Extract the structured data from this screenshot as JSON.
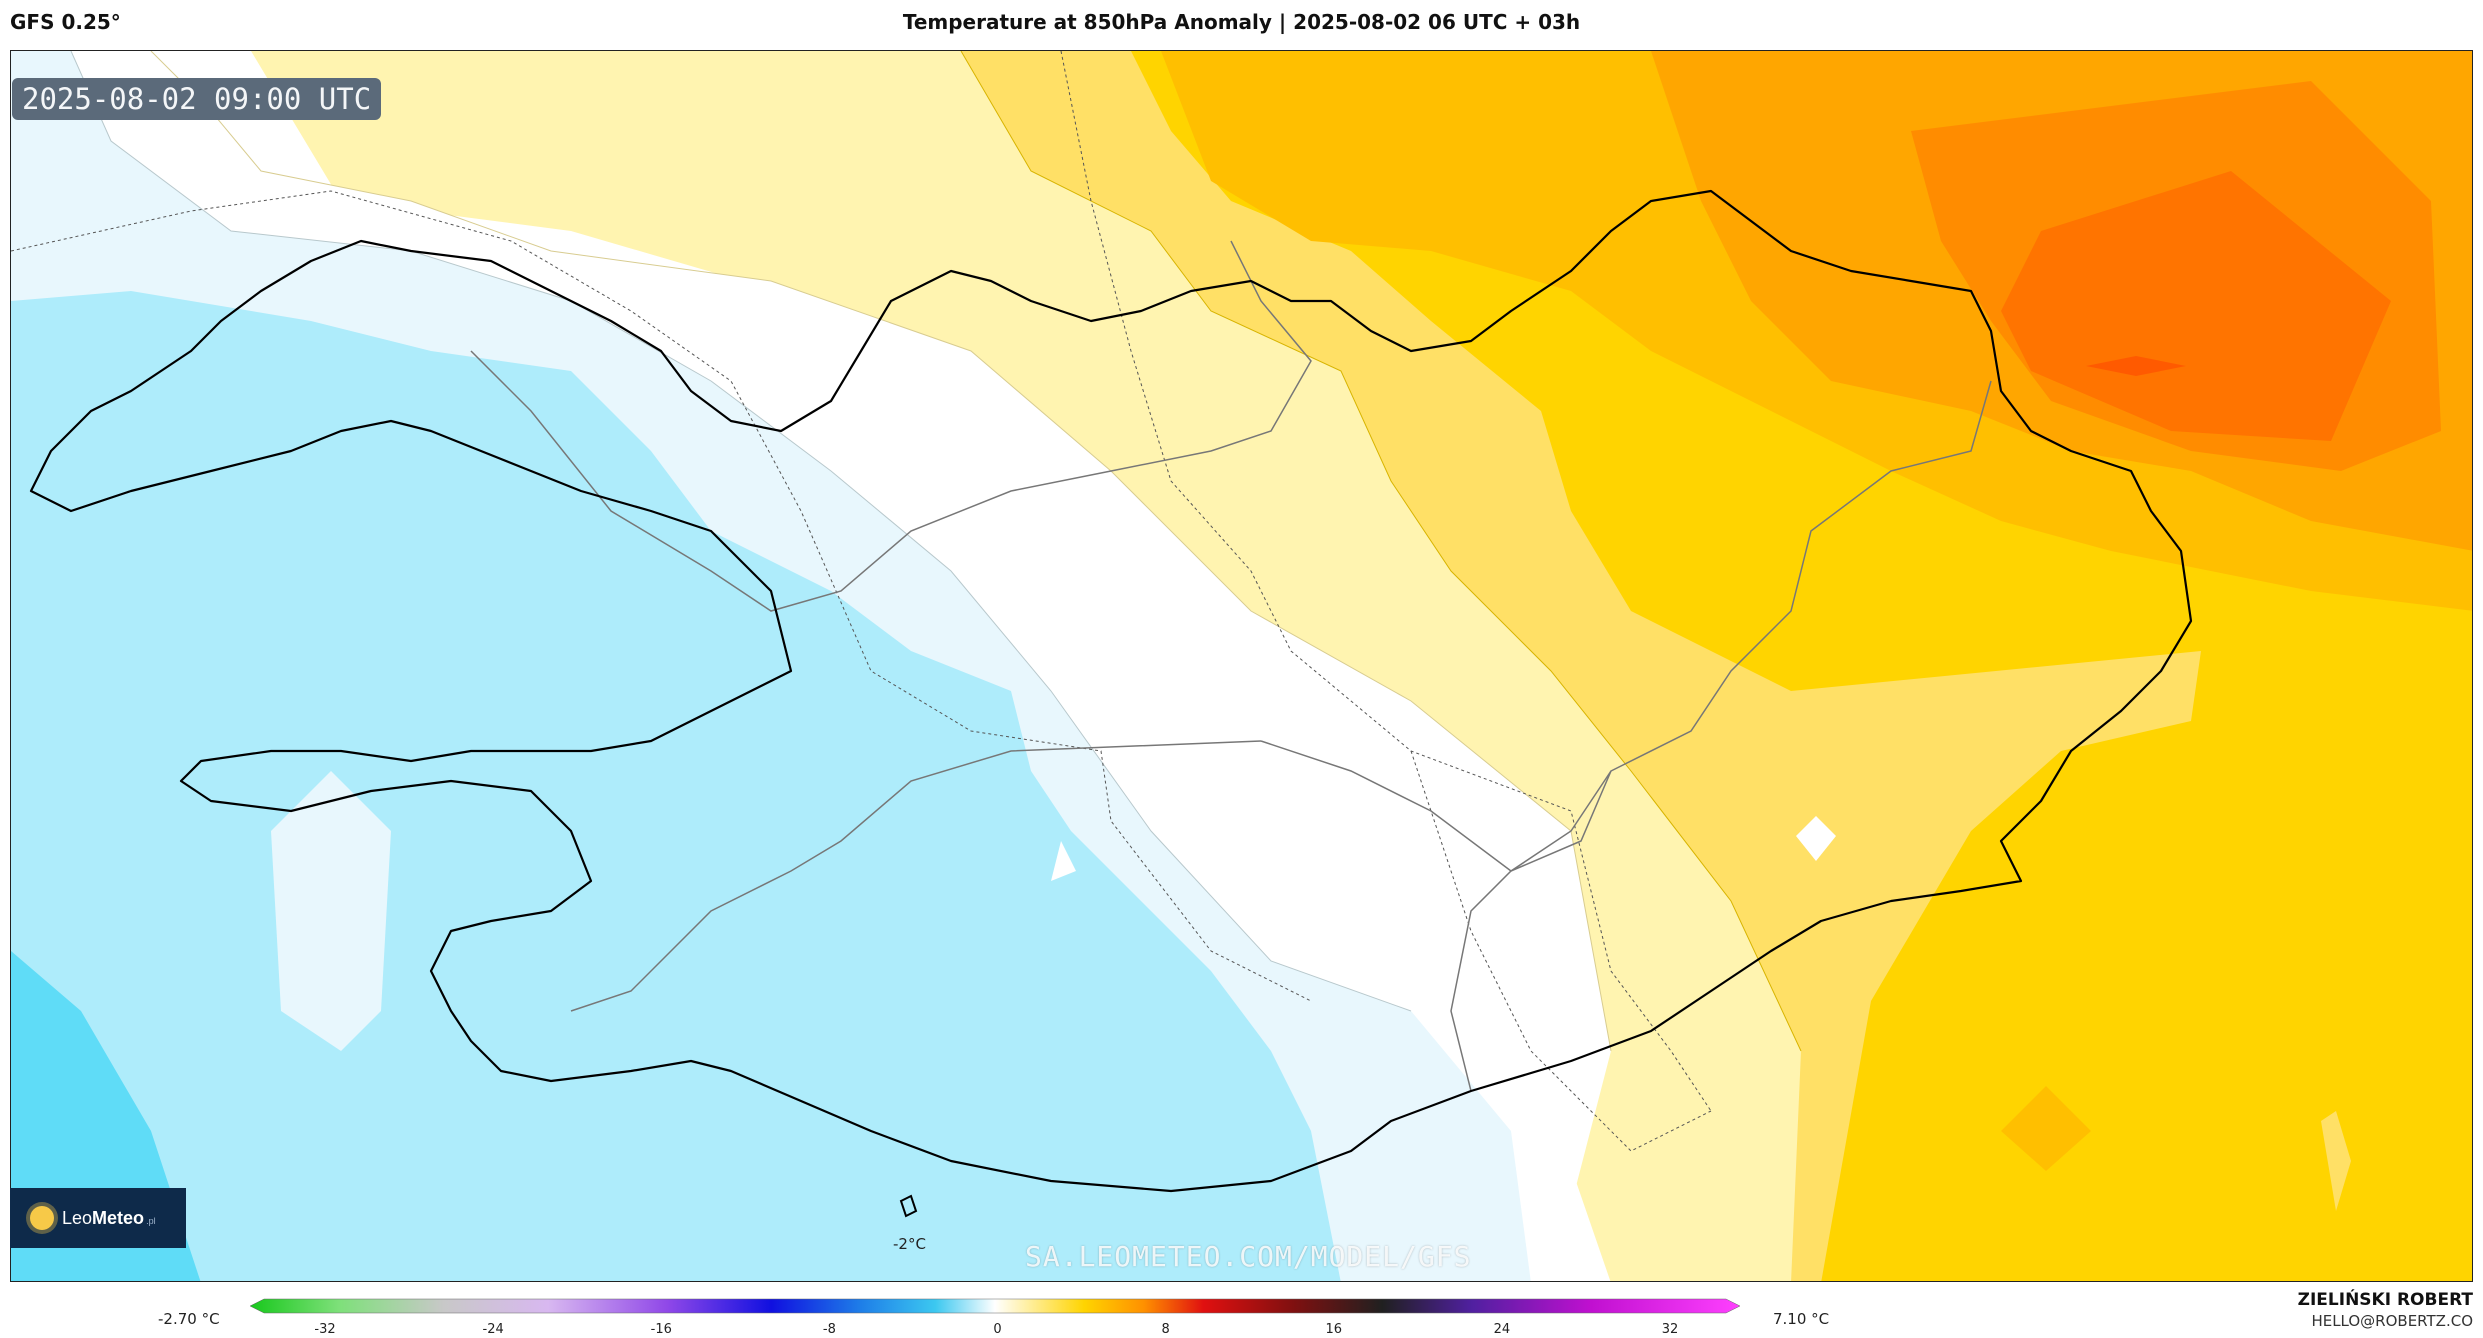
{
  "header": {
    "model": "GFS 0.25°",
    "title": "Temperature at 850hPa Anomaly | 2025-08-02 06 UTC + 03h"
  },
  "map": {
    "valid_time": "2025-08-02 09:00 UTC",
    "contour_label": "-2°C",
    "watermark": "SA.LEOMETEO.COM/MODEL/GFS",
    "colors": {
      "deep_cold": "#5fdcf7",
      "cold": "#aeecfb",
      "cool": "#e8f7fd",
      "neutral": "#ffffff",
      "mild": "#fff4b0",
      "warm": "#ffe066",
      "warmer": "#ffd400",
      "hot": "#ffbf00",
      "hotter": "#ffa600",
      "hottest": "#ff8c00",
      "peak": "#ff7400"
    }
  },
  "logo": {
    "name_light": "Leo",
    "name_bold": "Meteo",
    "suffix": ".pl"
  },
  "colorbar": {
    "min_label": "-2.70 °C",
    "max_label": "7.10 °C",
    "ticks": [
      "-32",
      "-24",
      "-16",
      "-8",
      "0",
      "8",
      "16",
      "24",
      "32"
    ]
  },
  "credits": {
    "author": "ZIELIŃSKI ROBERT",
    "email": "HELLO@ROBERTZ.CO"
  }
}
